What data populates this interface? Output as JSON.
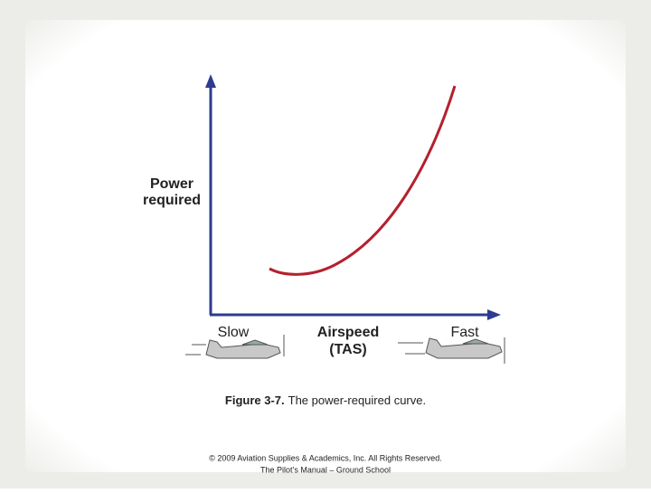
{
  "diagram": {
    "y_axis_label": [
      "Power",
      "required"
    ],
    "x_axis_label": [
      "Airspeed",
      "(TAS)"
    ],
    "x_left": "Slow",
    "x_right": "Fast"
  },
  "caption": {
    "label": "Figure 3-7.",
    "text": "The power-required curve."
  },
  "footer": [
    "© 2009 Aviation Supplies & Academics, Inc. All Rights Reserved.",
    "The Pilot’s Manual – Ground School"
  ]
}
